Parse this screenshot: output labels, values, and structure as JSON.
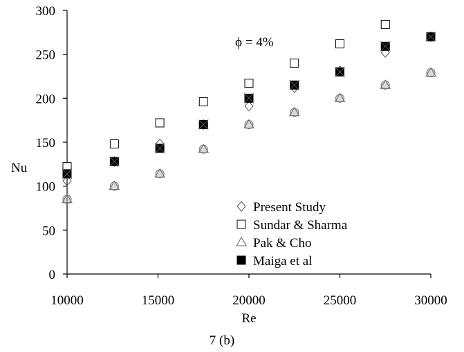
{
  "chart_data": {
    "type": "scatter",
    "xlabel": "Re",
    "ylabel": "Nu",
    "xlim": [
      10000,
      30000
    ],
    "ylim": [
      0,
      300
    ],
    "xticks": [
      10000,
      15000,
      20000,
      25000,
      30000
    ],
    "yticks": [
      0,
      50,
      100,
      150,
      200,
      250,
      300
    ],
    "annotation": "ϕ = 4%",
    "caption": "7 (b)",
    "legend_position": "bottom-right",
    "series": [
      {
        "name": "Present Study",
        "marker": "diamond",
        "x": [
          10000,
          12600,
          15100,
          17500,
          20000,
          22500,
          25000,
          27500,
          30000
        ],
        "y": [
          106,
          128,
          148,
          170,
          191,
          212,
          231,
          252,
          270
        ]
      },
      {
        "name": "Sundar & Sharma",
        "marker": "square",
        "x": [
          10000,
          12600,
          15100,
          17500,
          20000,
          22500,
          25000,
          27500
        ],
        "y": [
          122,
          148,
          172,
          196,
          217,
          240,
          262,
          284
        ]
      },
      {
        "name": "Pak & Cho",
        "marker": "triangle",
        "x": [
          10000,
          12600,
          15100,
          17500,
          20000,
          22500,
          25000,
          27500,
          30000
        ],
        "y": [
          85,
          100,
          114,
          142,
          170,
          184,
          200,
          215,
          229
        ]
      },
      {
        "name": "Maiga et al",
        "marker": "filled-square",
        "x": [
          10000,
          12600,
          15100,
          17500,
          20000,
          22500,
          25000,
          27500,
          30000
        ],
        "y": [
          114,
          128,
          143,
          170,
          200,
          215,
          230,
          259,
          270
        ]
      },
      {
        "name": "",
        "marker": "x",
        "x": [
          10000,
          12600,
          15100,
          17500,
          20000,
          22500,
          25000,
          27500,
          30000
        ],
        "y": [
          114,
          128,
          143,
          170,
          200,
          215,
          230,
          259,
          270
        ]
      },
      {
        "name": "",
        "marker": "circle",
        "x": [
          10000,
          12600,
          15100,
          17500,
          20000,
          22500,
          25000,
          27500,
          30000
        ],
        "y": [
          85,
          100,
          114,
          142,
          170,
          184,
          200,
          215,
          229
        ]
      }
    ]
  }
}
